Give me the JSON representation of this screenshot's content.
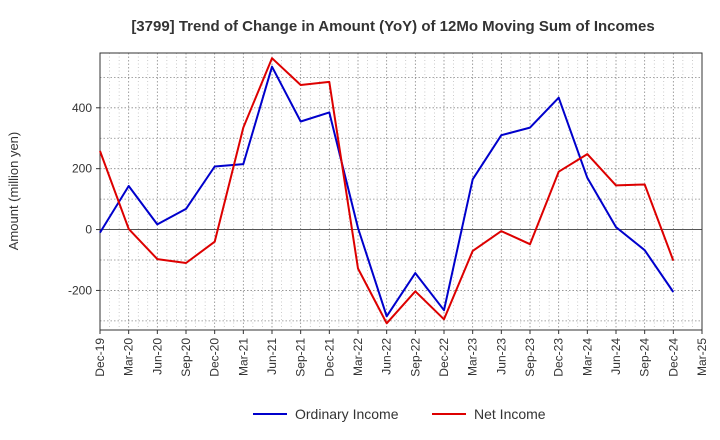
{
  "chart_data": {
    "type": "line",
    "title": "[3799]  Trend of Change in Amount (YoY) of 12Mo Moving Sum of Incomes",
    "xlabel": "",
    "ylabel": "Amount (million yen)",
    "x": [
      "Dec-19",
      "Mar-20",
      "Jun-20",
      "Sep-20",
      "Dec-20",
      "Mar-21",
      "Jun-21",
      "Sep-21",
      "Dec-21",
      "Mar-22",
      "Jun-22",
      "Sep-22",
      "Dec-22",
      "Mar-23",
      "Jun-23",
      "Sep-23",
      "Dec-23",
      "Mar-24",
      "Jun-24",
      "Sep-24",
      "Dec-24",
      "Mar-25"
    ],
    "ylim": [
      -330,
      580
    ],
    "yticks": [
      -200,
      0,
      200,
      400
    ],
    "grid": true,
    "legend_position": "bottom",
    "series": [
      {
        "name": "Ordinary Income",
        "color": "#0000cc",
        "values": [
          -10,
          143,
          17,
          68,
          207,
          215,
          535,
          355,
          385,
          5,
          -285,
          -143,
          -265,
          165,
          310,
          335,
          433,
          170,
          8,
          -68,
          -205,
          null
        ]
      },
      {
        "name": "Net Income",
        "color": "#dd0000",
        "values": [
          258,
          2,
          -97,
          -110,
          -40,
          335,
          563,
          475,
          485,
          -128,
          -308,
          -203,
          -295,
          -70,
          -5,
          -48,
          190,
          248,
          145,
          148,
          -102,
          null
        ]
      }
    ]
  }
}
